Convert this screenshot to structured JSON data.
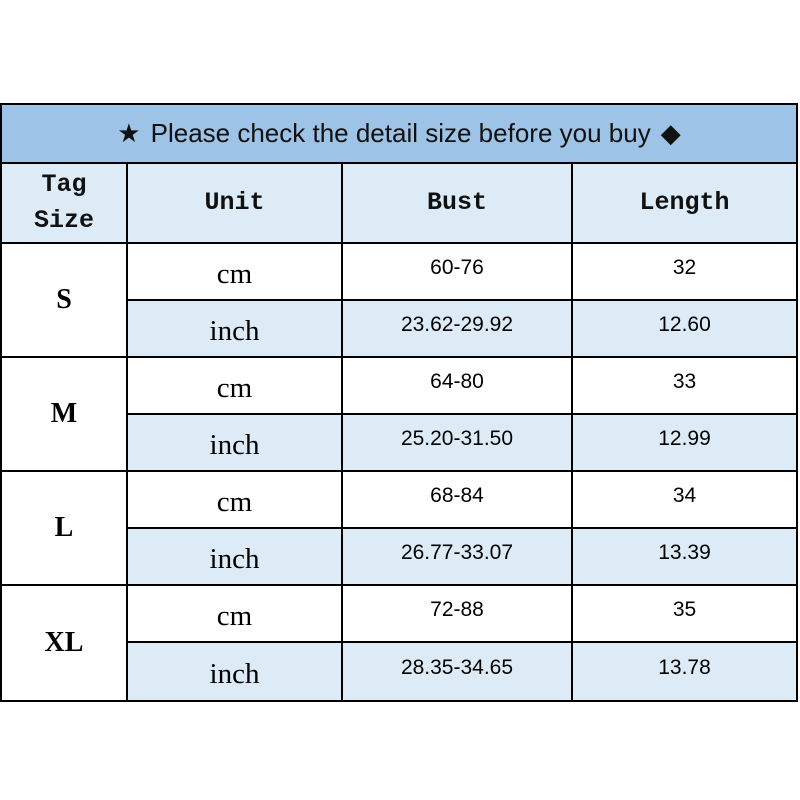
{
  "banner": {
    "star_icon": "★",
    "text": "Please check the detail size before you buy",
    "diamond_icon": "◆"
  },
  "headers": {
    "tag_size": "Tag\nSize",
    "unit": "Unit",
    "bust": "Bust",
    "length": "Length"
  },
  "sizes": [
    {
      "tag": "S",
      "rows": [
        {
          "unit": "cm",
          "bust": "60-76",
          "length": "32"
        },
        {
          "unit": "inch",
          "bust": "23.62-29.92",
          "length": "12.60"
        }
      ]
    },
    {
      "tag": "M",
      "rows": [
        {
          "unit": "cm",
          "bust": "64-80",
          "length": "33"
        },
        {
          "unit": "inch",
          "bust": "25.20-31.50",
          "length": "12.99"
        }
      ]
    },
    {
      "tag": "L",
      "rows": [
        {
          "unit": "cm",
          "bust": "68-84",
          "length": "34"
        },
        {
          "unit": "inch",
          "bust": "26.77-33.07",
          "length": "13.39"
        }
      ]
    },
    {
      "tag": "XL",
      "rows": [
        {
          "unit": "cm",
          "bust": "72-88",
          "length": "35"
        },
        {
          "unit": "inch",
          "bust": "28.35-34.65",
          "length": "13.78"
        }
      ]
    }
  ]
}
